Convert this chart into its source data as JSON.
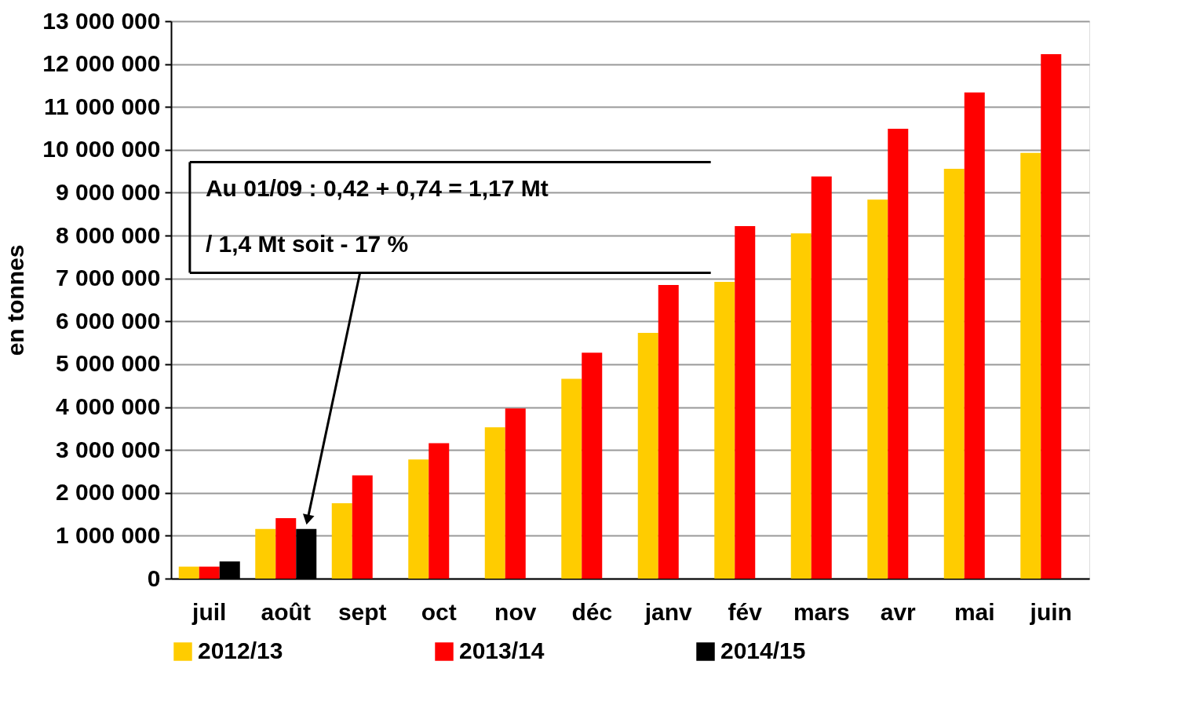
{
  "chart_data": {
    "type": "bar",
    "ylabel": "en tonnes",
    "categories": [
      "juil",
      "août",
      "sept",
      "oct",
      "nov",
      "déc",
      "janv",
      "fév",
      "mars",
      "avr",
      "mai",
      "juin"
    ],
    "series": [
      {
        "name": "2012/13",
        "color": "#ffcc00",
        "values": [
          280000,
          1160000,
          1760000,
          2780000,
          3530000,
          4660000,
          5730000,
          6920000,
          8050000,
          8840000,
          9560000,
          9930000
        ]
      },
      {
        "name": "2013/14",
        "color": "#ff0000",
        "values": [
          280000,
          1410000,
          2410000,
          3160000,
          3970000,
          5270000,
          6850000,
          8220000,
          9380000,
          10490000,
          11340000,
          12230000
        ]
      },
      {
        "name": "2014/15",
        "color": "#000000",
        "values": [
          400000,
          1160000,
          null,
          null,
          null,
          null,
          null,
          null,
          null,
          null,
          null,
          null
        ]
      }
    ],
    "ylim": [
      0,
      13000000
    ],
    "yticks": [
      0,
      {
        "value": 1000000,
        "label": "1 000 000"
      },
      {
        "value": 2000000,
        "label": "2 000 000"
      },
      {
        "value": 3000000,
        "label": "3 000 000"
      },
      {
        "value": 4000000,
        "label": "4 000 000"
      },
      {
        "value": 5000000,
        "label": "5 000 000"
      },
      {
        "value": 6000000,
        "label": "6 000 000"
      },
      {
        "value": 7000000,
        "label": "7 000 000"
      },
      {
        "value": 8000000,
        "label": "8 000 000"
      },
      {
        "value": 9000000,
        "label": "9 000 000"
      },
      {
        "value": 10000000,
        "label": "10 000 000"
      },
      {
        "value": 11000000,
        "label": "11 000 000"
      },
      {
        "value": 12000000,
        "label": "12 000 000"
      },
      {
        "value": 13000000,
        "label": "13 000 000"
      }
    ],
    "annotations": [
      "Au 01/09 : 0,42 + 0,74 = 1,17 Mt",
      "/ 1,4 Mt soit - 17 %"
    ],
    "grid": "y",
    "legend": "bottom"
  }
}
